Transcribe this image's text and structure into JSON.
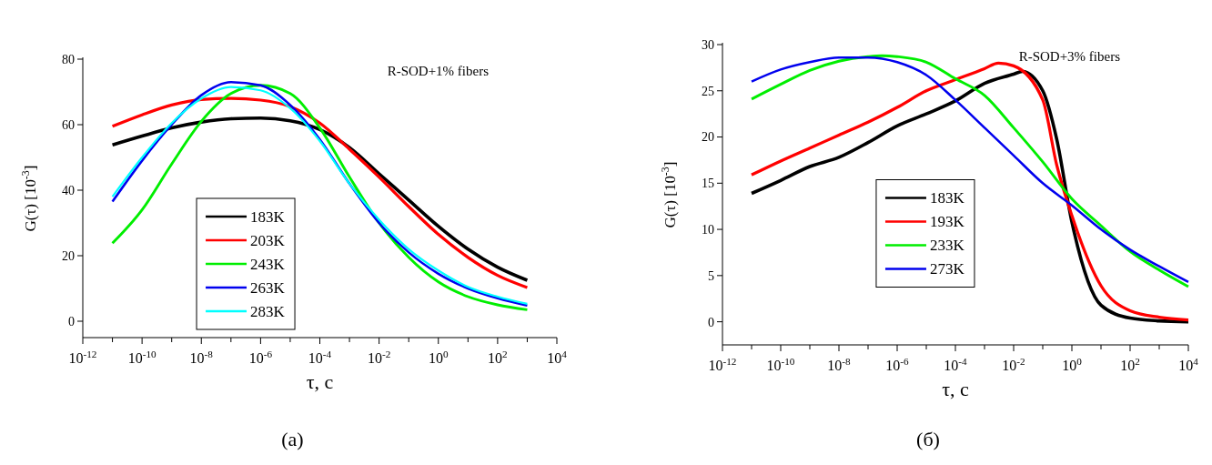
{
  "chart_data": [
    {
      "type": "line",
      "xlabel": "τ, c",
      "ylabel": "G(τ) [10$^{-3}$]",
      "log": "x",
      "xlim": [
        1e-12,
        10000.0
      ],
      "ylim": [
        -5,
        80
      ],
      "xticks": [
        {
          "value": 1e-12,
          "label": "10$^{-12}$"
        },
        {
          "value": 1e-11,
          "label": null
        },
        {
          "value": 1e-10,
          "label": "10$^{-10}$"
        },
        {
          "value": 1e-09,
          "label": null
        },
        {
          "value": 1e-08,
          "label": "10$^{-8}$"
        },
        {
          "value": 1e-07,
          "label": null
        },
        {
          "value": 1e-06,
          "label": "10$^{-6}$"
        },
        {
          "value": 1e-05,
          "label": null
        },
        {
          "value": 0.0001,
          "label": "10$^{-4}$"
        },
        {
          "value": 0.001,
          "label": null
        },
        {
          "value": 0.01,
          "label": "10$^{-2}$"
        },
        {
          "value": 0.1,
          "label": null
        },
        {
          "value": 1,
          "label": "10$^{0}$"
        },
        {
          "value": 10,
          "label": null
        },
        {
          "value": 100,
          "label": "10$^{2}$"
        },
        {
          "value": 1000,
          "label": null
        },
        {
          "value": 10000,
          "label": "10$^{4}$"
        }
      ],
      "yticks": [
        0,
        20,
        40,
        60,
        80
      ],
      "legend": "center left",
      "grid": false,
      "marker": "none",
      "line_style": "solid",
      "x": [
        1e-11,
        1e-10,
        1e-09,
        1e-08,
        1e-07,
        1e-06,
        1e-05,
        0.0001,
        0.001,
        0.01,
        0.1,
        1,
        10,
        100,
        1000
      ],
      "series": [
        {
          "name": "183K",
          "color": "#000000",
          "values": [
            53.8,
            56.5,
            59,
            60.8,
            61.8,
            62,
            61.2,
            58.5,
            53,
            45,
            37,
            29,
            22,
            16.5,
            12.5
          ]
        },
        {
          "name": "203K",
          "color": "#ff0000",
          "values": [
            59.5,
            63,
            66,
            67.7,
            68,
            67.5,
            65.5,
            60.5,
            52.5,
            44,
            35,
            26.5,
            19.5,
            14,
            10.3
          ]
        },
        {
          "name": "243K",
          "color": "#00ee00",
          "values": [
            23.8,
            34,
            48,
            61,
            69.5,
            72,
            69.5,
            59,
            44,
            30,
            19.5,
            12,
            7.5,
            5,
            3.5
          ]
        },
        {
          "name": "263K",
          "color": "#0000ee",
          "values": [
            36.5,
            49,
            60,
            69,
            73,
            72,
            66,
            55.5,
            42,
            30,
            21,
            14.5,
            10,
            7,
            4.8
          ]
        },
        {
          "name": "283K",
          "color": "#00ffff",
          "values": [
            38,
            50,
            60.5,
            68,
            71.5,
            70.5,
            65,
            55,
            42,
            31,
            22,
            15.5,
            10.5,
            7.5,
            5.3
          ]
        }
      ],
      "annotations": [
        "R-SOD+1% fibers",
        "(a)"
      ]
    },
    {
      "type": "line",
      "xlabel": "τ, c",
      "ylabel": "G(τ) [10$^{-3}$]",
      "log": "x",
      "xlim": [
        1e-12,
        10000.0
      ],
      "ylim": [
        -2.5,
        30
      ],
      "xticks": [
        {
          "value": 1e-12,
          "label": "10$^{-12}$"
        },
        {
          "value": 1e-11,
          "label": null
        },
        {
          "value": 1e-10,
          "label": "10$^{-10}$"
        },
        {
          "value": 1e-09,
          "label": null
        },
        {
          "value": 1e-08,
          "label": "10$^{-8}$"
        },
        {
          "value": 1e-07,
          "label": null
        },
        {
          "value": 1e-06,
          "label": "10$^{-6}$"
        },
        {
          "value": 1e-05,
          "label": null
        },
        {
          "value": 0.0001,
          "label": "10$^{-4}$"
        },
        {
          "value": 0.001,
          "label": null
        },
        {
          "value": 0.01,
          "label": "10$^{-2}$"
        },
        {
          "value": 0.1,
          "label": null
        },
        {
          "value": 1,
          "label": "10$^{0}$"
        },
        {
          "value": 10,
          "label": null
        },
        {
          "value": 100,
          "label": "10$^{2}$"
        },
        {
          "value": 1000,
          "label": null
        },
        {
          "value": 10000,
          "label": "10$^{4}$"
        }
      ],
      "yticks": [
        0,
        5,
        10,
        15,
        20,
        25,
        30
      ],
      "legend": "center",
      "grid": false,
      "marker": "none",
      "line_style": "solid",
      "series": [
        {
          "name": "183K",
          "color": "#000000",
          "x": [
            1e-11,
            1e-10,
            1e-09,
            1e-08,
            1e-07,
            1e-06,
            1e-05,
            0.0001,
            0.001,
            0.01,
            0.02,
            0.1,
            0.3,
            1,
            10,
            100,
            1000,
            10000
          ],
          "values": [
            13.9,
            15.3,
            16.8,
            17.8,
            19.4,
            21.2,
            22.5,
            23.9,
            25.8,
            26.8,
            27.1,
            25,
            19.8,
            10.8,
            1.8,
            0.4,
            0.1,
            0
          ]
        },
        {
          "name": "193K",
          "color": "#ff0000",
          "x": [
            1e-11,
            1e-10,
            1e-09,
            1e-08,
            1e-07,
            1e-06,
            1e-05,
            0.0001,
            0.001,
            0.003,
            0.01,
            0.1,
            0.3,
            1,
            10,
            100,
            1000,
            10000
          ],
          "values": [
            15.9,
            17.4,
            18.8,
            20.2,
            21.6,
            23.2,
            25,
            26.2,
            27.4,
            28,
            27.7,
            24,
            17,
            11.5,
            3.9,
            1.2,
            0.5,
            0.2
          ]
        },
        {
          "name": "233K",
          "color": "#00ee00",
          "x": [
            1e-11,
            1e-10,
            1e-09,
            1e-08,
            1e-07,
            3e-07,
            1e-06,
            1e-05,
            0.0001,
            0.001,
            0.01,
            0.1,
            1,
            10,
            100,
            1000,
            10000
          ],
          "values": [
            24.1,
            25.7,
            27.2,
            28.2,
            28.7,
            28.8,
            28.7,
            28.1,
            26.3,
            24.5,
            21,
            17.3,
            13.3,
            10.4,
            7.6,
            5.6,
            3.8
          ]
        },
        {
          "name": "273K",
          "color": "#0000ee",
          "x": [
            1e-11,
            1e-10,
            1e-09,
            1e-08,
            1e-07,
            1e-06,
            1e-05,
            0.0001,
            0.001,
            0.01,
            0.1,
            1,
            10,
            100,
            1000,
            10000
          ],
          "values": [
            26,
            27.3,
            28.1,
            28.6,
            28.6,
            28.1,
            26.7,
            24,
            21,
            18,
            15,
            12.6,
            10,
            7.8,
            6,
            4.3
          ]
        }
      ],
      "annotations": [
        "R-SOD+3% fibers",
        "(б)"
      ]
    }
  ]
}
